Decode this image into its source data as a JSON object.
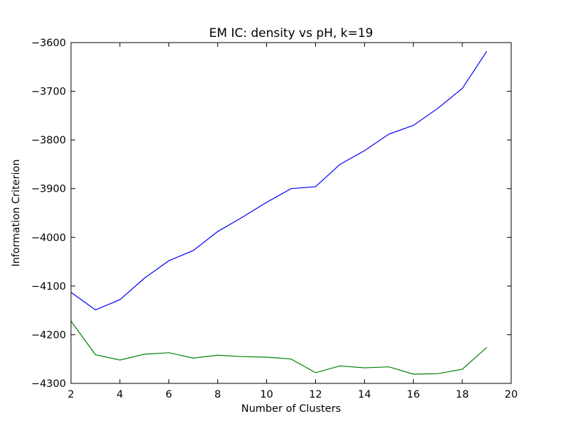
{
  "chart_data": {
    "type": "line",
    "title": "EM IC: density vs pH, k=19",
    "xlabel": "Number of Clusters",
    "ylabel": "Information Criterion",
    "xlim": [
      2,
      20
    ],
    "ylim": [
      -4300,
      -3600
    ],
    "xticks": [
      2,
      4,
      6,
      8,
      10,
      12,
      14,
      16,
      18,
      20
    ],
    "yticks": [
      -4300,
      -4200,
      -4100,
      -4000,
      -3900,
      -3800,
      -3700,
      -3600
    ],
    "grid": false,
    "x": [
      2,
      3,
      4,
      5,
      6,
      7,
      8,
      9,
      10,
      11,
      12,
      13,
      14,
      15,
      16,
      17,
      18,
      19
    ],
    "series": [
      {
        "color": "#0000ff",
        "values": [
          -4113,
          -4149,
          -4128,
          -4084,
          -4048,
          -4027,
          -3988,
          -3959,
          -3928,
          -3900,
          -3896,
          -3850,
          -3822,
          -3788,
          -3770,
          -3735,
          -3694,
          -3618
        ]
      },
      {
        "color": "#008000",
        "values": [
          -4172,
          -4241,
          -4252,
          -4240,
          -4237,
          -4248,
          -4242,
          -4245,
          -4246,
          -4250,
          -4278,
          -4264,
          -4268,
          -4266,
          -4281,
          -4280,
          -4271,
          -4226
        ]
      }
    ]
  }
}
